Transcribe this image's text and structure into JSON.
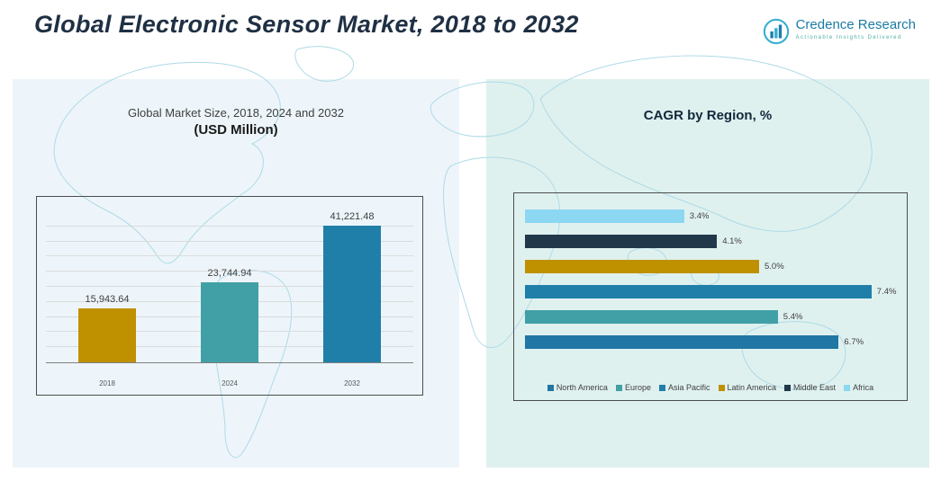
{
  "header": {
    "title": "Global Electronic Sensor Market, 2018 to 2032",
    "logo_name": "Credence Research",
    "logo_tagline": "Actionable Insights Delivered"
  },
  "left_panel": {
    "title_line1": "Global Market Size, 2018, 2024 and 2032",
    "title_line2": "(USD Million)"
  },
  "right_panel": {
    "title": "CAGR by Region, %"
  },
  "chart_data": [
    {
      "type": "bar",
      "orientation": "vertical",
      "title": "Global Market Size, 2018, 2024 and 2032 (USD Million)",
      "categories": [
        "2018",
        "2024",
        "2032"
      ],
      "values": [
        15943.64,
        23744.94,
        41221.48
      ],
      "labels": [
        "15,943.64",
        "23,744.94",
        "41,221.48"
      ],
      "colors": [
        "#BF9000",
        "#41A0A5",
        "#1F7FA9"
      ],
      "ylim": [
        0,
        45000
      ],
      "grid": true
    },
    {
      "type": "bar",
      "orientation": "horizontal",
      "title": "CAGR by Region, %",
      "categories": [
        "Africa",
        "Middle East",
        "Latin America",
        "Asia Pacific",
        "Europe",
        "North America"
      ],
      "values": [
        3.4,
        4.1,
        5.0,
        7.4,
        5.4,
        6.7
      ],
      "labels": [
        "3.4%",
        "4.1%",
        "5.0%",
        "7.4%",
        "5.4%",
        "6.7%"
      ],
      "colors": [
        "#8CD7F2",
        "#21384A",
        "#BF9000",
        "#1F7FA9",
        "#41A0A5",
        "#2076A4"
      ],
      "xlim": [
        0,
        8
      ],
      "legend": [
        "North America",
        "Europe",
        "Asia Pacific",
        "Latin America",
        "Middle East",
        "Africa"
      ],
      "legend_colors": [
        "#2076A4",
        "#41A0A5",
        "#1F7FA9",
        "#BF9000",
        "#21384A",
        "#8CD7F2"
      ],
      "legend_position": "bottom"
    }
  ]
}
